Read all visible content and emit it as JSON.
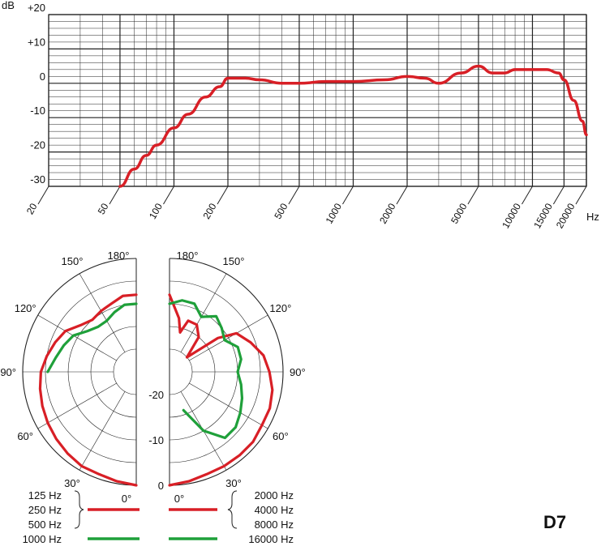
{
  "chart_data": [
    {
      "type": "line",
      "name": "frequency-response",
      "ylabel": "dB",
      "xlabel": "Hz",
      "x_scale": "log",
      "xlim": [
        20,
        20000
      ],
      "ylim": [
        -30,
        20
      ],
      "grid": true,
      "y_ticks": [
        "+20",
        "+10",
        "0",
        "-10",
        "-20",
        "-30"
      ],
      "x_ticks": [
        "20",
        "50",
        "100",
        "200",
        "500",
        "1000",
        "2000",
        "5000",
        "10000",
        "15000",
        "20000"
      ],
      "series": [
        {
          "color": "#d81f26",
          "x": [
            50,
            60,
            70,
            80,
            100,
            120,
            150,
            180,
            200,
            250,
            300,
            400,
            500,
            700,
            1000,
            1500,
            2000,
            2500,
            3000,
            4000,
            5000,
            6000,
            7000,
            8000,
            10000,
            12000,
            14000,
            15000,
            17000,
            19000,
            20000
          ],
          "y": [
            -30,
            -25,
            -21,
            -18,
            -13,
            -9,
            -4,
            -1,
            1.5,
            1.5,
            1,
            0,
            0,
            0.5,
            0.5,
            1,
            2,
            1.5,
            0,
            3,
            5,
            3,
            3,
            4,
            4,
            4,
            3,
            1,
            -5,
            -11,
            -15
          ]
        }
      ]
    },
    {
      "type": "polar",
      "name": "polar-pattern",
      "r_labels": [
        "-20",
        "-10",
        "0"
      ],
      "angle_labels_left": [
        "180°",
        "150°",
        "120°",
        "90°",
        "60°",
        "30°",
        "0°"
      ],
      "angle_labels_right": [
        "180°",
        "150°",
        "120°",
        "90°",
        "60°",
        "30°",
        "0°"
      ],
      "series": [
        {
          "side": "left",
          "color": "#d81f26",
          "frequencies": [
            "125 Hz",
            "250 Hz",
            "500 Hz"
          ],
          "angles": [
            0,
            10,
            20,
            30,
            40,
            50,
            60,
            70,
            80,
            90,
            100,
            110,
            120,
            130,
            140,
            150,
            160,
            170,
            180
          ],
          "values": [
            0,
            -0.5,
            -1,
            -1,
            -1.5,
            -2,
            -2.5,
            -3,
            -3.5,
            -4,
            -5,
            -6,
            -7,
            -9,
            -10,
            -9.5,
            -9,
            -8,
            -8
          ]
        },
        {
          "side": "left",
          "color": "#1fa03a",
          "frequencies": [
            "1000 Hz"
          ],
          "angles": [
            90,
            100,
            110,
            120,
            130,
            140,
            150,
            160,
            170,
            180
          ],
          "values": [
            -5.5,
            -7,
            -8,
            -9,
            -11,
            -12,
            -12,
            -11,
            -10,
            -10
          ]
        },
        {
          "side": "right",
          "color": "#d81f26",
          "frequencies": [
            "2000 Hz",
            "4000 Hz",
            "8000 Hz"
          ],
          "angles": [
            0,
            10,
            20,
            30,
            40,
            50,
            60,
            70,
            80,
            90,
            100,
            110,
            120,
            125,
            130,
            140,
            150,
            160,
            165,
            170,
            180
          ],
          "values": [
            0,
            -0.5,
            -1,
            -1,
            -1,
            -1,
            -1.5,
            -1.5,
            -2,
            -3,
            -4,
            -6,
            -8,
            -12,
            -20,
            -15,
            -13,
            -13,
            -16,
            -13,
            -8
          ]
        },
        {
          "side": "right",
          "color": "#1fa03a",
          "frequencies": [
            "16000 Hz"
          ],
          "angles": [
            20,
            30,
            40,
            50,
            60,
            70,
            80,
            90,
            100,
            110,
            120,
            130,
            140,
            150,
            160,
            170,
            180
          ],
          "values": [
            -16,
            -10,
            -6,
            -6,
            -7,
            -8,
            -9,
            -10,
            -9,
            -9,
            -11,
            -10,
            -9,
            -11,
            -9,
            -9,
            -10
          ]
        }
      ],
      "legend_left": [
        "125 Hz",
        "250 Hz",
        "500 Hz",
        "1000 Hz"
      ],
      "legend_right": [
        "2000 Hz",
        "4000 Hz",
        "8000 Hz",
        "16000 Hz"
      ]
    }
  ],
  "model": "D7",
  "colors": {
    "red": "#d81f26",
    "green": "#1fa03a"
  }
}
